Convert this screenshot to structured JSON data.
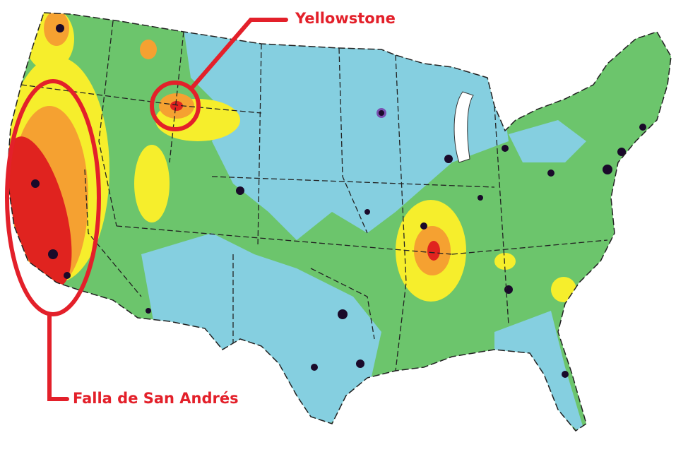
{
  "colors": {
    "annotation": "#e3202a",
    "low_hazard": "#85cfe0",
    "moderate_hazard": "#6cc56c",
    "elevated_hazard": "#f6ee2c",
    "high_hazard": "#f5a131",
    "very_high_hazard": "#e0231f",
    "population": "#6a3d9a"
  },
  "annotations": {
    "yellowstone": "Yellowstone",
    "san_andreas": "Falla de San Andrés"
  }
}
